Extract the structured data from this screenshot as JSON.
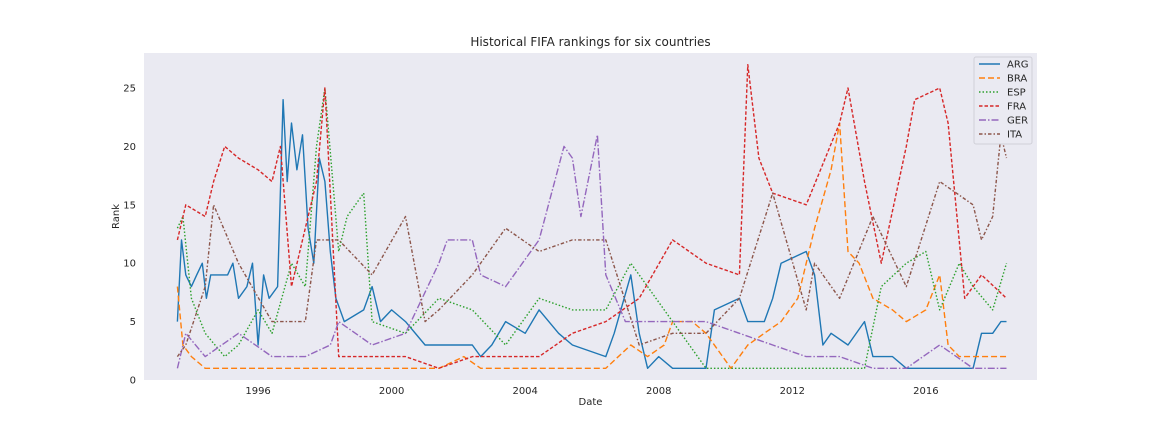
{
  "chart_data": {
    "type": "line",
    "title": "Historical FIFA rankings for six countries",
    "xlabel": "Date",
    "ylabel": "Rank",
    "xlim": [
      "1992-08-01",
      "2019-05-01"
    ],
    "ylim": [
      0,
      28
    ],
    "x_ticks": [
      "1996-01-01",
      "2000-01-01",
      "2004-01-01",
      "2008-01-01",
      "2012-01-01",
      "2016-01-01"
    ],
    "x_tick_labels": [
      "1996",
      "2000",
      "2004",
      "2008",
      "2012",
      "2016"
    ],
    "y_ticks": [
      0,
      5,
      10,
      15,
      20,
      25
    ],
    "y_tick_labels": [
      "0",
      "5",
      "10",
      "15",
      "20",
      "25"
    ],
    "grid": false,
    "legend_position": "top-right",
    "background": "#eaeaf2",
    "series": [
      {
        "name": "ARG",
        "color": "#1f77b4",
        "dash": "solid",
        "points": [
          [
            "1993-08-01",
            5
          ],
          [
            "1993-09-15",
            12
          ],
          [
            "1993-11-01",
            9
          ],
          [
            "1994-01-01",
            8
          ],
          [
            "1994-03-01",
            9
          ],
          [
            "1994-05-01",
            10
          ],
          [
            "1994-06-15",
            7
          ],
          [
            "1994-08-01",
            9
          ],
          [
            "1995-02-01",
            9
          ],
          [
            "1995-04-01",
            10
          ],
          [
            "1995-06-01",
            7
          ],
          [
            "1995-09-01",
            8
          ],
          [
            "1995-11-01",
            10
          ],
          [
            "1996-01-01",
            3
          ],
          [
            "1996-03-01",
            9
          ],
          [
            "1996-05-01",
            7
          ],
          [
            "1996-08-01",
            8
          ],
          [
            "1996-10-01",
            24
          ],
          [
            "1996-11-15",
            17
          ],
          [
            "1997-01-01",
            22
          ],
          [
            "1997-03-01",
            18
          ],
          [
            "1997-05-01",
            21
          ],
          [
            "1997-07-01",
            13
          ],
          [
            "1997-09-01",
            10
          ],
          [
            "1997-11-01",
            19
          ],
          [
            "1998-01-01",
            17
          ],
          [
            "1998-03-01",
            11
          ],
          [
            "1998-05-01",
            7
          ],
          [
            "1998-08-01",
            5
          ],
          [
            "1999-03-01",
            6
          ],
          [
            "1999-06-01",
            8
          ],
          [
            "1999-09-01",
            5
          ],
          [
            "2000-01-01",
            6
          ],
          [
            "2000-06-01",
            5
          ],
          [
            "2001-01-01",
            3
          ],
          [
            "2002-06-01",
            3
          ],
          [
            "2002-09-01",
            2
          ],
          [
            "2003-01-01",
            3
          ],
          [
            "2003-06-01",
            5
          ],
          [
            "2004-01-01",
            4
          ],
          [
            "2004-06-01",
            6
          ],
          [
            "2005-01-01",
            4
          ],
          [
            "2005-06-01",
            3
          ],
          [
            "2006-06-01",
            2
          ],
          [
            "2006-09-01",
            4
          ],
          [
            "2007-03-01",
            9
          ],
          [
            "2007-06-01",
            4
          ],
          [
            "2007-09-01",
            1
          ],
          [
            "2008-01-01",
            2
          ],
          [
            "2008-06-01",
            1
          ],
          [
            "2009-06-01",
            1
          ],
          [
            "2009-09-01",
            6
          ],
          [
            "2010-06-01",
            7
          ],
          [
            "2010-09-01",
            5
          ],
          [
            "2011-03-01",
            5
          ],
          [
            "2011-06-01",
            7
          ],
          [
            "2011-09-01",
            10
          ],
          [
            "2012-06-01",
            11
          ],
          [
            "2012-09-01",
            9
          ],
          [
            "2012-12-01",
            3
          ],
          [
            "2013-03-01",
            4
          ],
          [
            "2013-09-01",
            3
          ],
          [
            "2014-03-01",
            5
          ],
          [
            "2014-06-01",
            2
          ],
          [
            "2015-01-01",
            2
          ],
          [
            "2015-06-01",
            1
          ],
          [
            "2016-01-01",
            1
          ],
          [
            "2016-06-01",
            1
          ],
          [
            "2017-06-01",
            1
          ],
          [
            "2017-09-01",
            4
          ],
          [
            "2018-01-01",
            4
          ],
          [
            "2018-04-01",
            5
          ],
          [
            "2018-06-01",
            5
          ]
        ]
      },
      {
        "name": "BRA",
        "color": "#ff7f0e",
        "dash": "dashed",
        "points": [
          [
            "1993-08-01",
            8
          ],
          [
            "1993-10-01",
            3
          ],
          [
            "1994-01-01",
            2
          ],
          [
            "1994-06-01",
            1
          ],
          [
            "1995-06-01",
            1
          ],
          [
            "1996-06-01",
            1
          ],
          [
            "1998-06-01",
            1
          ],
          [
            "2000-06-01",
            1
          ],
          [
            "2001-06-01",
            1
          ],
          [
            "2002-03-01",
            2
          ],
          [
            "2002-09-01",
            1
          ],
          [
            "2004-06-01",
            1
          ],
          [
            "2006-06-01",
            1
          ],
          [
            "2007-03-01",
            3
          ],
          [
            "2007-09-01",
            2
          ],
          [
            "2008-03-01",
            3
          ],
          [
            "2008-06-01",
            5
          ],
          [
            "2009-01-01",
            5
          ],
          [
            "2009-06-01",
            4
          ],
          [
            "2010-03-01",
            1
          ],
          [
            "2010-09-01",
            3
          ],
          [
            "2011-03-01",
            4
          ],
          [
            "2011-09-01",
            5
          ],
          [
            "2012-03-01",
            7
          ],
          [
            "2012-09-01",
            13
          ],
          [
            "2013-03-01",
            18
          ],
          [
            "2013-06-01",
            22
          ],
          [
            "2013-09-01",
            11
          ],
          [
            "2014-01-01",
            10
          ],
          [
            "2014-06-01",
            7
          ],
          [
            "2015-01-01",
            6
          ],
          [
            "2015-06-01",
            5
          ],
          [
            "2016-01-01",
            6
          ],
          [
            "2016-06-01",
            9
          ],
          [
            "2016-09-01",
            3
          ],
          [
            "2017-01-01",
            2
          ],
          [
            "2017-06-01",
            2
          ],
          [
            "2018-01-01",
            2
          ],
          [
            "2018-06-01",
            2
          ]
        ]
      },
      {
        "name": "ESP",
        "color": "#2ca02c",
        "dash": "dotted",
        "points": [
          [
            "1993-08-01",
            13
          ],
          [
            "1993-10-01",
            14
          ],
          [
            "1994-01-01",
            7
          ],
          [
            "1994-06-01",
            4
          ],
          [
            "1995-01-01",
            2
          ],
          [
            "1995-06-01",
            3
          ],
          [
            "1996-01-01",
            6
          ],
          [
            "1996-06-01",
            4
          ],
          [
            "1997-01-01",
            10
          ],
          [
            "1997-06-01",
            8
          ],
          [
            "1997-10-01",
            20
          ],
          [
            "1998-01-01",
            25
          ],
          [
            "1998-06-01",
            11
          ],
          [
            "1998-09-01",
            14
          ],
          [
            "1999-03-01",
            16
          ],
          [
            "1999-06-01",
            5
          ],
          [
            "2000-06-01",
            4
          ],
          [
            "2001-06-01",
            7
          ],
          [
            "2002-06-01",
            6
          ],
          [
            "2003-06-01",
            3
          ],
          [
            "2004-06-01",
            7
          ],
          [
            "2005-06-01",
            6
          ],
          [
            "2006-06-01",
            6
          ],
          [
            "2007-03-01",
            10
          ],
          [
            "2007-09-01",
            8
          ],
          [
            "2008-06-01",
            5
          ],
          [
            "2009-06-01",
            1
          ],
          [
            "2010-06-01",
            1
          ],
          [
            "2011-06-01",
            1
          ],
          [
            "2012-06-01",
            1
          ],
          [
            "2013-06-01",
            1
          ],
          [
            "2014-03-01",
            1
          ],
          [
            "2014-09-01",
            8
          ],
          [
            "2015-06-01",
            10
          ],
          [
            "2016-01-01",
            11
          ],
          [
            "2016-06-01",
            6
          ],
          [
            "2017-01-01",
            10
          ],
          [
            "2017-06-01",
            8
          ],
          [
            "2018-01-01",
            6
          ],
          [
            "2018-06-01",
            10
          ]
        ]
      },
      {
        "name": "FRA",
        "color": "#d62728",
        "dash": "dashed-fine",
        "points": [
          [
            "1993-08-01",
            12
          ],
          [
            "1993-11-01",
            15
          ],
          [
            "1994-06-01",
            14
          ],
          [
            "1994-09-01",
            17
          ],
          [
            "1995-01-01",
            20
          ],
          [
            "1995-06-01",
            19
          ],
          [
            "1996-01-01",
            18
          ],
          [
            "1996-06-01",
            17
          ],
          [
            "1996-09-01",
            20
          ],
          [
            "1997-01-01",
            8
          ],
          [
            "1997-06-01",
            13
          ],
          [
            "1997-10-01",
            17
          ],
          [
            "1998-01-01",
            25
          ],
          [
            "1998-06-01",
            2
          ],
          [
            "1999-06-01",
            2
          ],
          [
            "2000-06-01",
            2
          ],
          [
            "2001-06-01",
            1
          ],
          [
            "2002-06-01",
            2
          ],
          [
            "2003-06-01",
            2
          ],
          [
            "2004-06-01",
            2
          ],
          [
            "2005-06-01",
            4
          ],
          [
            "2006-06-01",
            5
          ],
          [
            "2007-06-01",
            7
          ],
          [
            "2008-06-01",
            12
          ],
          [
            "2009-06-01",
            10
          ],
          [
            "2010-06-01",
            9
          ],
          [
            "2010-09-01",
            27
          ],
          [
            "2011-01-01",
            19
          ],
          [
            "2011-06-01",
            16
          ],
          [
            "2012-06-01",
            15
          ],
          [
            "2013-06-01",
            22
          ],
          [
            "2013-09-01",
            25
          ],
          [
            "2014-03-01",
            17
          ],
          [
            "2014-09-01",
            10
          ],
          [
            "2015-06-01",
            20
          ],
          [
            "2015-09-01",
            24
          ],
          [
            "2016-06-01",
            25
          ],
          [
            "2016-09-01",
            22
          ],
          [
            "2017-03-01",
            7
          ],
          [
            "2017-09-01",
            9
          ],
          [
            "2018-06-01",
            7
          ]
        ]
      },
      {
        "name": "GER",
        "color": "#9467bd",
        "dash": "dashdot",
        "points": [
          [
            "1993-08-01",
            1
          ],
          [
            "1993-11-01",
            4
          ],
          [
            "1994-06-01",
            2
          ],
          [
            "1995-06-01",
            4
          ],
          [
            "1996-06-01",
            2
          ],
          [
            "1997-06-01",
            2
          ],
          [
            "1998-03-01",
            3
          ],
          [
            "1998-06-01",
            5
          ],
          [
            "1999-06-01",
            3
          ],
          [
            "2000-06-01",
            4
          ],
          [
            "2001-06-01",
            10
          ],
          [
            "2001-09-01",
            12
          ],
          [
            "2002-06-01",
            12
          ],
          [
            "2002-09-01",
            9
          ],
          [
            "2003-06-01",
            8
          ],
          [
            "2004-06-01",
            12
          ],
          [
            "2005-03-01",
            20
          ],
          [
            "2005-06-01",
            19
          ],
          [
            "2005-09-01",
            14
          ],
          [
            "2006-03-01",
            21
          ],
          [
            "2006-06-01",
            9
          ],
          [
            "2007-01-01",
            5
          ],
          [
            "2007-06-01",
            5
          ],
          [
            "2008-06-01",
            5
          ],
          [
            "2009-06-01",
            5
          ],
          [
            "2010-06-01",
            4
          ],
          [
            "2011-06-01",
            3
          ],
          [
            "2012-06-01",
            2
          ],
          [
            "2013-06-01",
            2
          ],
          [
            "2014-06-01",
            1
          ],
          [
            "2015-06-01",
            1
          ],
          [
            "2016-06-01",
            3
          ],
          [
            "2017-06-01",
            1
          ],
          [
            "2018-06-01",
            1
          ]
        ]
      },
      {
        "name": "ITA",
        "color": "#8c564b",
        "dash": "dashdot-fine",
        "points": [
          [
            "1993-08-01",
            2
          ],
          [
            "1993-11-01",
            3
          ],
          [
            "1994-06-01",
            8
          ],
          [
            "1994-09-01",
            15
          ],
          [
            "1995-06-01",
            10
          ],
          [
            "1996-06-01",
            5
          ],
          [
            "1997-06-01",
            5
          ],
          [
            "1997-10-01",
            12
          ],
          [
            "1998-06-01",
            12
          ],
          [
            "1999-06-01",
            9
          ],
          [
            "2000-06-01",
            14
          ],
          [
            "2001-01-01",
            5
          ],
          [
            "2001-06-01",
            6
          ],
          [
            "2002-06-01",
            9
          ],
          [
            "2003-06-01",
            13
          ],
          [
            "2004-06-01",
            11
          ],
          [
            "2005-06-01",
            12
          ],
          [
            "2006-06-01",
            12
          ],
          [
            "2007-06-01",
            3
          ],
          [
            "2008-06-01",
            4
          ],
          [
            "2009-06-01",
            4
          ],
          [
            "2010-06-01",
            7
          ],
          [
            "2011-06-01",
            16
          ],
          [
            "2012-06-01",
            6
          ],
          [
            "2012-09-01",
            10
          ],
          [
            "2013-06-01",
            7
          ],
          [
            "2014-06-01",
            14
          ],
          [
            "2015-06-01",
            8
          ],
          [
            "2016-06-01",
            17
          ],
          [
            "2017-06-01",
            15
          ],
          [
            "2017-09-01",
            12
          ],
          [
            "2018-01-01",
            14
          ],
          [
            "2018-04-01",
            21
          ],
          [
            "2018-06-01",
            19
          ]
        ]
      }
    ]
  }
}
